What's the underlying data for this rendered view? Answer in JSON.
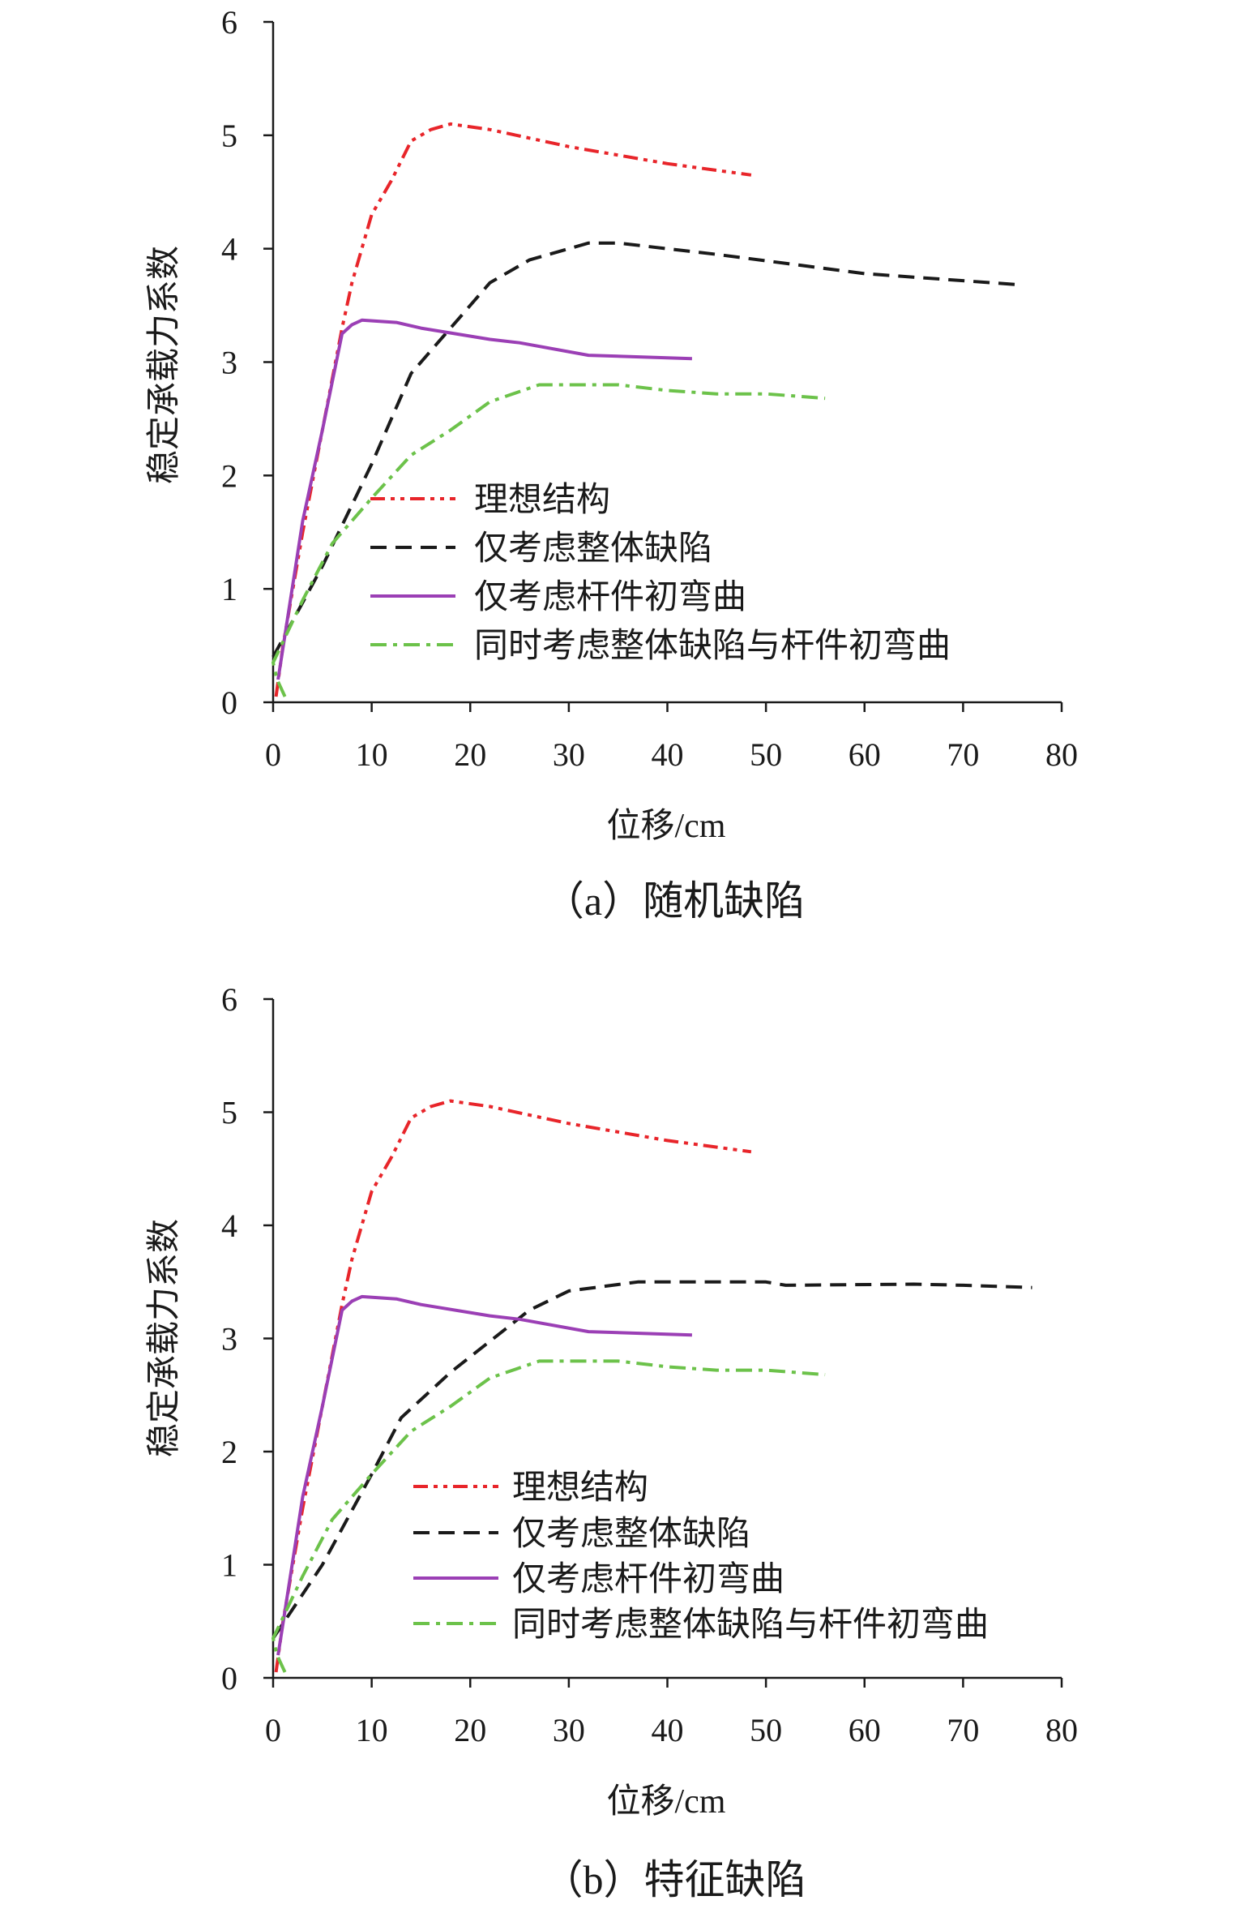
{
  "chart_data": [
    {
      "type": "line",
      "caption": "（a）随机缺陷",
      "xlabel": "位移/cm",
      "ylabel": "稳定承载力系数",
      "xlim": [
        0,
        80
      ],
      "ylim": [
        0,
        6
      ],
      "x_ticks": [
        "0",
        "10",
        "20",
        "30",
        "40",
        "50",
        "60",
        "70",
        "80"
      ],
      "y_ticks": [
        "0",
        "1",
        "2",
        "3",
        "4",
        "5",
        "6"
      ],
      "grid": false,
      "legend_position": "center",
      "series": [
        {
          "name": "理想结构",
          "color": "#e8252a",
          "style": "dash-dot-dot",
          "x": [
            0.3,
            1,
            3,
            5,
            7,
            8,
            10,
            12,
            14,
            16,
            18,
            22,
            30,
            40,
            48.5
          ],
          "y": [
            0.05,
            0.5,
            1.5,
            2.4,
            3.3,
            3.7,
            4.3,
            4.6,
            4.95,
            5.05,
            5.1,
            5.05,
            4.9,
            4.75,
            4.65
          ]
        },
        {
          "name": "仅考虑整体缺陷",
          "color": "#1a1a1a",
          "style": "dashed",
          "x": [
            0,
            5,
            10,
            14,
            18,
            22,
            26,
            32,
            35,
            45,
            60,
            76
          ],
          "y": [
            0.4,
            1.2,
            2.1,
            2.9,
            3.3,
            3.7,
            3.9,
            4.05,
            4.05,
            3.95,
            3.78,
            3.68
          ]
        },
        {
          "name": "仅考虑杆件初弯曲",
          "color": "#9b3fb5",
          "style": "solid",
          "x": [
            0.5,
            3,
            5,
            7,
            8,
            9,
            12.5,
            15,
            22,
            25,
            32,
            42.5
          ],
          "y": [
            0.2,
            1.6,
            2.4,
            3.25,
            3.33,
            3.37,
            3.35,
            3.3,
            3.2,
            3.17,
            3.06,
            3.03
          ]
        },
        {
          "name": "同时考虑整体缺陷与杆件初弯曲",
          "color": "#6cc24a",
          "style": "dash-dot",
          "x": [
            1.2,
            0.4,
            0,
            3,
            6,
            10,
            14,
            18,
            22,
            27,
            35,
            40,
            45,
            50,
            56
          ],
          "y": [
            0.05,
            0.2,
            0.35,
            0.9,
            1.4,
            1.8,
            2.18,
            2.4,
            2.65,
            2.8,
            2.8,
            2.75,
            2.72,
            2.72,
            2.68
          ]
        }
      ]
    },
    {
      "type": "line",
      "caption": "（b）特征缺陷",
      "xlabel": "位移/cm",
      "ylabel": "稳定承载力系数",
      "xlim": [
        0,
        80
      ],
      "ylim": [
        0,
        6
      ],
      "x_ticks": [
        "0",
        "10",
        "20",
        "30",
        "40",
        "50",
        "60",
        "70",
        "80"
      ],
      "y_ticks": [
        "0",
        "1",
        "2",
        "3",
        "4",
        "5",
        "6"
      ],
      "grid": false,
      "legend_position": "center-right",
      "series": [
        {
          "name": "理想结构",
          "color": "#e8252a",
          "style": "dash-dot-dot",
          "x": [
            0.3,
            1,
            3,
            5,
            7,
            8,
            10,
            12,
            14,
            16,
            18,
            22,
            30,
            40,
            48.5
          ],
          "y": [
            0.05,
            0.5,
            1.5,
            2.4,
            3.3,
            3.7,
            4.3,
            4.6,
            4.95,
            5.05,
            5.1,
            5.05,
            4.9,
            4.75,
            4.65
          ]
        },
        {
          "name": "仅考虑整体缺陷",
          "color": "#1a1a1a",
          "style": "dashed",
          "x": [
            0,
            5,
            10,
            13,
            18,
            26,
            30,
            37,
            50,
            52,
            65,
            70,
            77
          ],
          "y": [
            0.35,
            1.0,
            1.8,
            2.3,
            2.7,
            3.25,
            3.42,
            3.5,
            3.5,
            3.47,
            3.48,
            3.47,
            3.45
          ]
        },
        {
          "name": "仅考虑杆件初弯曲",
          "color": "#9b3fb5",
          "style": "solid",
          "x": [
            0.5,
            3,
            5,
            7,
            8,
            9,
            12.5,
            15,
            22,
            25,
            32,
            42.5
          ],
          "y": [
            0.2,
            1.6,
            2.4,
            3.25,
            3.33,
            3.37,
            3.35,
            3.3,
            3.2,
            3.17,
            3.06,
            3.03
          ]
        },
        {
          "name": "同时考虑整体缺陷与杆件初弯曲",
          "color": "#6cc24a",
          "style": "dash-dot",
          "x": [
            1.2,
            0.4,
            0,
            3,
            6,
            10,
            14,
            18,
            22,
            27,
            35,
            40,
            45,
            50,
            56
          ],
          "y": [
            0.05,
            0.2,
            0.35,
            0.9,
            1.4,
            1.8,
            2.18,
            2.4,
            2.65,
            2.8,
            2.8,
            2.75,
            2.72,
            2.72,
            2.68
          ]
        }
      ]
    }
  ]
}
